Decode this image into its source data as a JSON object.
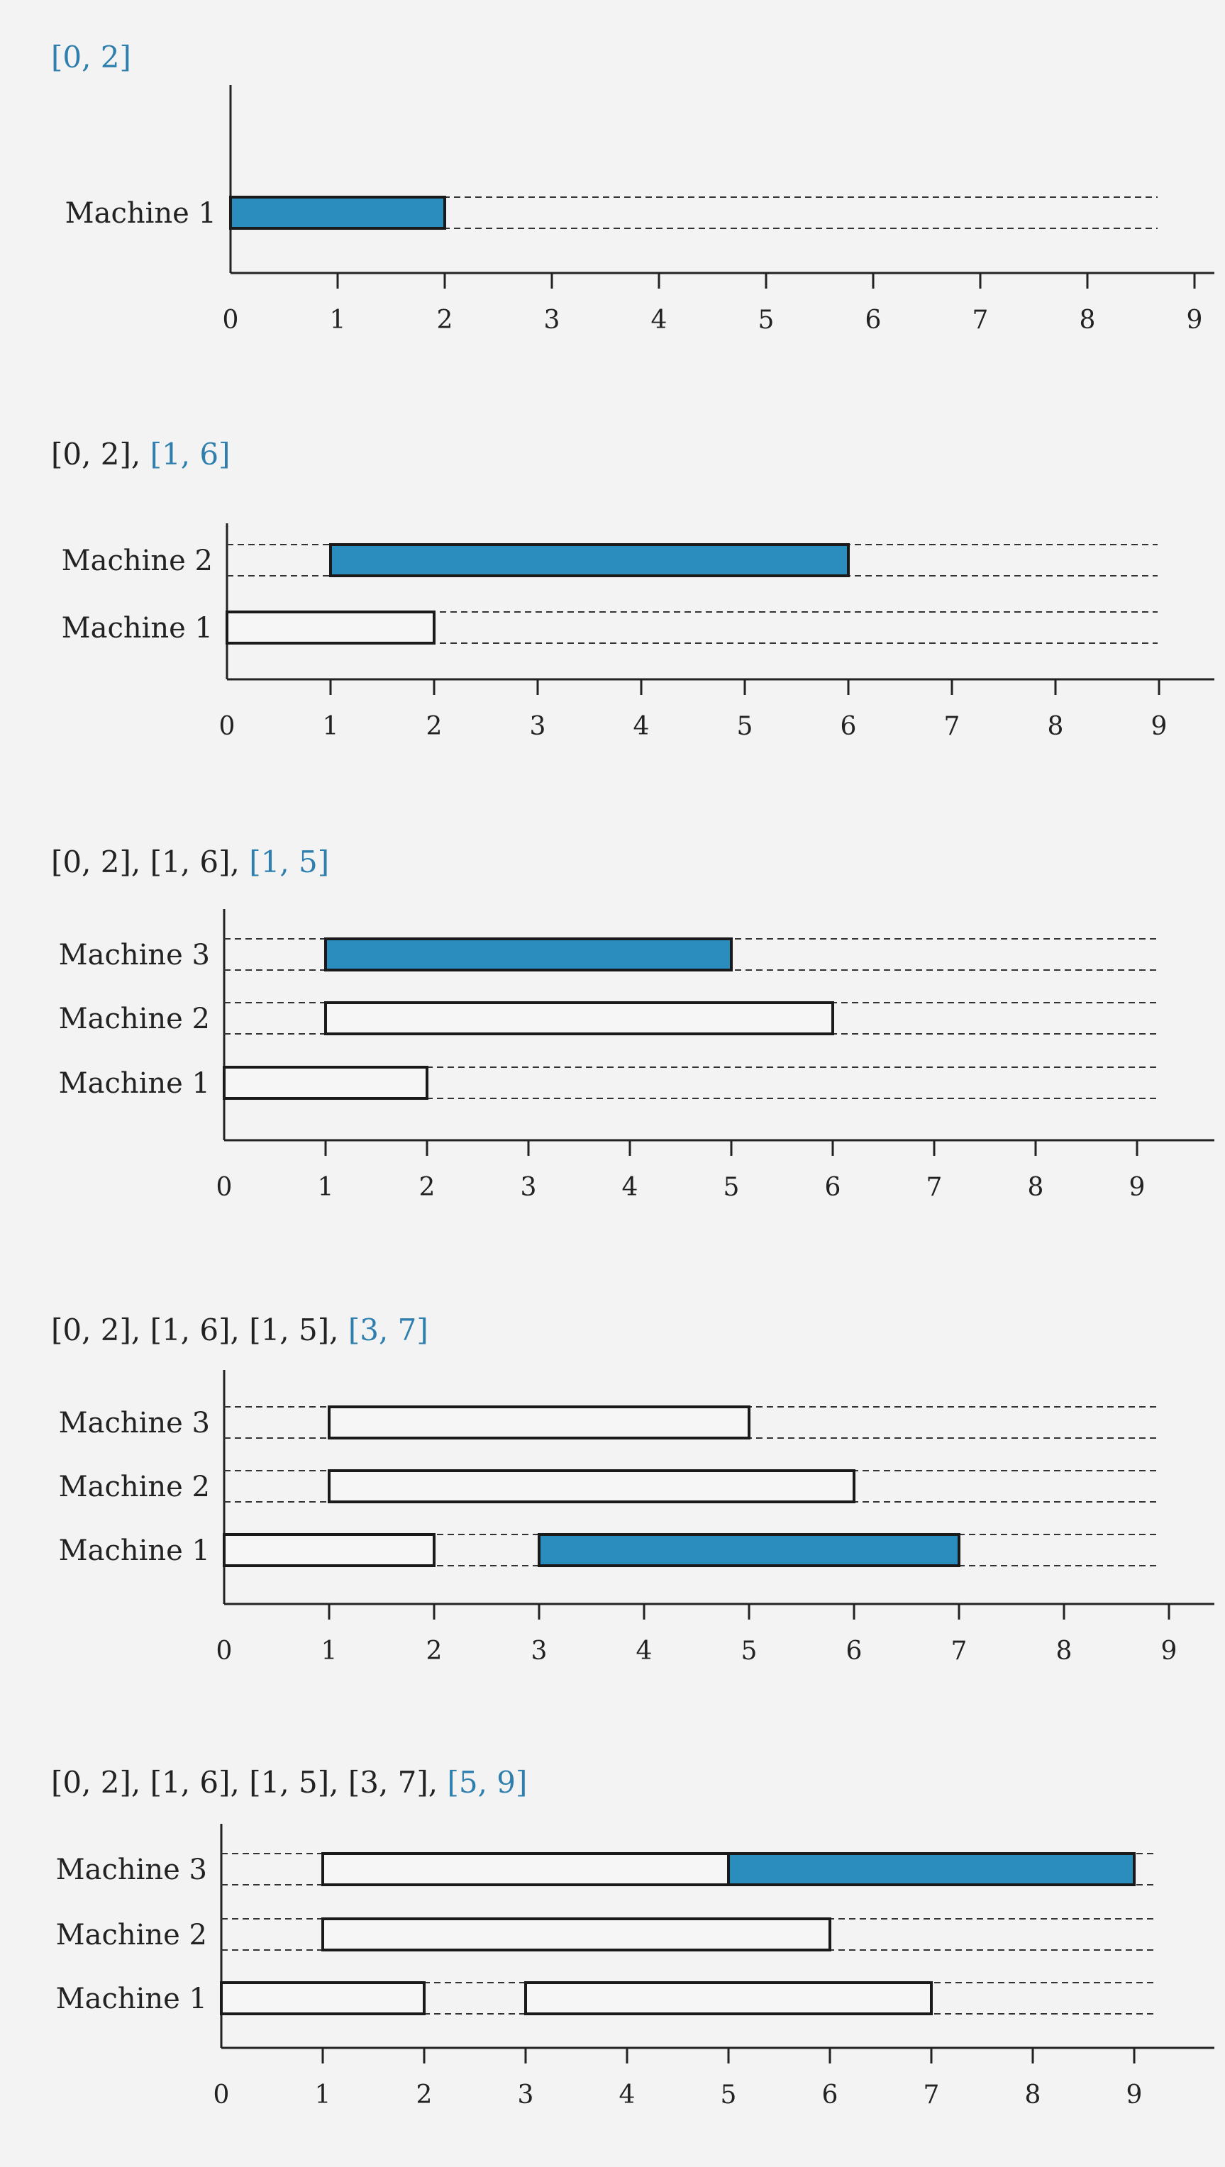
{
  "colors": {
    "new_interval_fill": "#2a8dbd",
    "new_caption_text": "#2f7fae",
    "bar_outline": "#1a1a1a",
    "open_bar_fill": "#f6f6f6",
    "axis": "#222222",
    "lane_dashes": "#333333",
    "page_background": "#f3f3f3"
  },
  "tick_labels": [
    "0",
    "1",
    "2",
    "3",
    "4",
    "5",
    "6",
    "7",
    "8",
    "9"
  ],
  "panels": [
    {
      "caption_old": "",
      "caption_new": "[0, 2]",
      "machines": [
        {
          "label": "Machine 1",
          "intervals": [
            {
              "start": 0,
              "end": 2,
              "highlighted": true
            }
          ]
        }
      ]
    },
    {
      "caption_old": "[0, 2], ",
      "caption_new": "[1, 6]",
      "machines": [
        {
          "label": "Machine 1",
          "intervals": [
            {
              "start": 0,
              "end": 2,
              "highlighted": false
            }
          ]
        },
        {
          "label": "Machine 2",
          "intervals": [
            {
              "start": 1,
              "end": 6,
              "highlighted": true
            }
          ]
        }
      ]
    },
    {
      "caption_old": "[0, 2], [1, 6], ",
      "caption_new": "[1, 5]",
      "machines": [
        {
          "label": "Machine 1",
          "intervals": [
            {
              "start": 0,
              "end": 2,
              "highlighted": false
            }
          ]
        },
        {
          "label": "Machine 2",
          "intervals": [
            {
              "start": 1,
              "end": 6,
              "highlighted": false
            }
          ]
        },
        {
          "label": "Machine 3",
          "intervals": [
            {
              "start": 1,
              "end": 5,
              "highlighted": true
            }
          ]
        }
      ]
    },
    {
      "caption_old": "[0, 2], [1, 6], [1, 5], ",
      "caption_new": "[3, 7]",
      "machines": [
        {
          "label": "Machine 1",
          "intervals": [
            {
              "start": 0,
              "end": 2,
              "highlighted": false
            },
            {
              "start": 3,
              "end": 7,
              "highlighted": true
            }
          ]
        },
        {
          "label": "Machine 2",
          "intervals": [
            {
              "start": 1,
              "end": 6,
              "highlighted": false
            }
          ]
        },
        {
          "label": "Machine 3",
          "intervals": [
            {
              "start": 1,
              "end": 5,
              "highlighted": false
            }
          ]
        }
      ]
    },
    {
      "caption_old": "[0, 2], [1, 6], [1, 5], [3, 7], ",
      "caption_new": "[5, 9]",
      "machines": [
        {
          "label": "Machine 1",
          "intervals": [
            {
              "start": 0,
              "end": 2,
              "highlighted": false
            },
            {
              "start": 3,
              "end": 7,
              "highlighted": false
            }
          ]
        },
        {
          "label": "Machine 2",
          "intervals": [
            {
              "start": 1,
              "end": 6,
              "highlighted": false
            }
          ]
        },
        {
          "label": "Machine 3",
          "intervals": [
            {
              "start": 1,
              "end": 5,
              "highlighted": false
            },
            {
              "start": 5,
              "end": 9,
              "highlighted": true
            }
          ]
        }
      ]
    }
  ]
}
